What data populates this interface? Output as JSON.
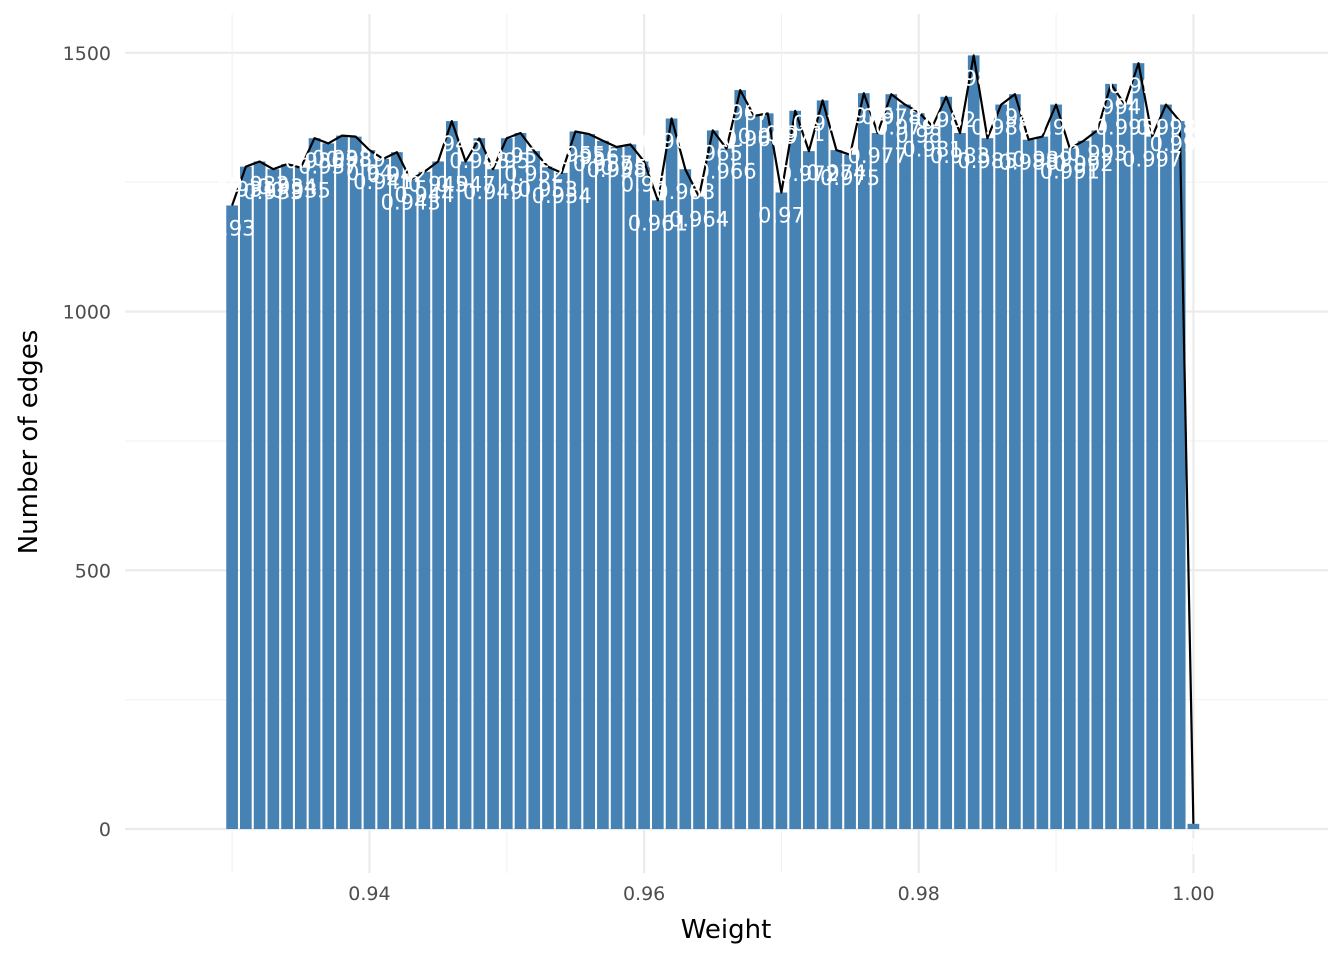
{
  "chart_data": {
    "type": "bar",
    "xlabel": "Weight",
    "ylabel": "Number of edges",
    "xlim": [
      0.9222,
      1.0098
    ],
    "ylim": [
      -85,
      1575
    ],
    "x_ticks": [
      "0.94",
      "0.96",
      "0.98",
      "1.00"
    ],
    "y_ticks": [
      "0",
      "500",
      "1000",
      "1500"
    ],
    "grid": true,
    "bar_width": 0.00085,
    "bar_color": "#4682b4",
    "line_color": "#000000",
    "label_color": "#ffffff",
    "x": [
      0.93,
      0.931,
      0.932,
      0.933,
      0.934,
      0.935,
      0.936,
      0.937,
      0.938,
      0.939,
      0.94,
      0.941,
      0.942,
      0.943,
      0.944,
      0.945,
      0.946,
      0.947,
      0.948,
      0.949,
      0.95,
      0.951,
      0.952,
      0.953,
      0.954,
      0.955,
      0.956,
      0.957,
      0.958,
      0.959,
      0.96,
      0.961,
      0.962,
      0.963,
      0.964,
      0.965,
      0.966,
      0.967,
      0.968,
      0.969,
      0.97,
      0.971,
      0.972,
      0.973,
      0.974,
      0.975,
      0.976,
      0.977,
      0.978,
      0.979,
      0.98,
      0.981,
      0.982,
      0.983,
      0.984,
      0.985,
      0.986,
      0.987,
      0.988,
      0.989,
      0.99,
      0.991,
      0.992,
      0.993,
      0.994,
      0.995,
      0.996,
      0.997,
      0.998,
      0.999,
      1.0
    ],
    "values": [
      1205,
      1280,
      1290,
      1275,
      1285,
      1278,
      1335,
      1325,
      1340,
      1338,
      1312,
      1295,
      1308,
      1255,
      1270,
      1290,
      1368,
      1290,
      1335,
      1275,
      1335,
      1345,
      1310,
      1280,
      1268,
      1348,
      1343,
      1330,
      1318,
      1323,
      1290,
      1215,
      1373,
      1275,
      1222,
      1350,
      1315,
      1428,
      1378,
      1383,
      1230,
      1388,
      1310,
      1408,
      1312,
      1303,
      1422,
      1345,
      1420,
      1400,
      1385,
      1358,
      1415,
      1345,
      1495,
      1335,
      1400,
      1420,
      1332,
      1338,
      1400,
      1315,
      1330,
      1350,
      1440,
      1400,
      1480,
      1338,
      1400,
      1368,
      10
    ],
    "labels": [
      "0.93",
      "0.931",
      "0.932",
      "0.933",
      "0.934",
      "0.935",
      "0.936",
      "0.937",
      "0.938",
      "0.939",
      "0.94",
      "0.941",
      "0.942",
      "0.943",
      "0.944",
      "0.945",
      "0.946",
      "0.947",
      "0.948",
      "0.949",
      "0.95",
      "0.951",
      "0.952",
      "0.953",
      "0.954",
      "0.955",
      "0.956",
      "0.957",
      "0.958",
      "0.959",
      "0.96",
      "0.961",
      "0.962",
      "0.963",
      "0.964",
      "0.965",
      "0.966",
      "0.967",
      "0.968",
      "0.969",
      "0.97",
      "0.971",
      "0.972",
      "0.973",
      "0.974",
      "0.975",
      "0.976",
      "0.977",
      "0.978",
      "0.979",
      "0.98",
      "0.981",
      "0.982",
      "0.983",
      "0.984",
      "0.985",
      "0.986",
      "0.987",
      "0.988",
      "0.989",
      "0.99",
      "0.991",
      "0.992",
      "0.993",
      "0.994",
      "0.995",
      "0.996",
      "0.997",
      "0.998",
      "0.999",
      "1"
    ]
  }
}
